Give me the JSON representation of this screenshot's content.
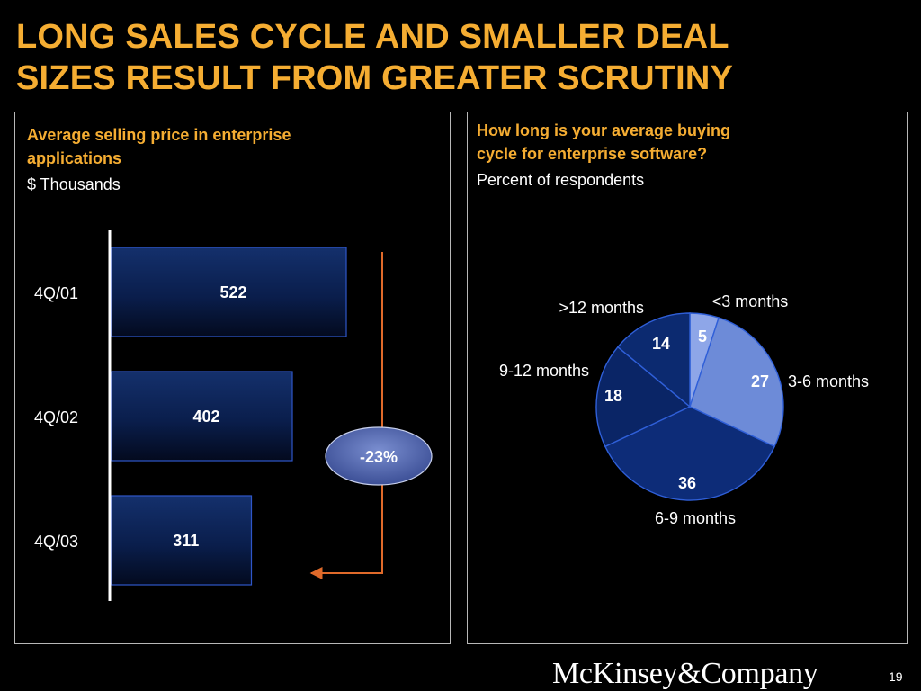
{
  "title_lines": [
    "LONG SALES CYCLE AND SMALLER DEAL",
    "SIZES RESULT FROM GREATER SCRUTINY"
  ],
  "colors": {
    "accent": "#f5ad32",
    "arrow": "#e06a2a",
    "background": "#000000"
  },
  "left_panel": {
    "title_lines": [
      "Average selling price in enterprise",
      "applications"
    ],
    "subtitle": "$ Thousands"
  },
  "right_panel": {
    "title_lines": [
      "How long is your average buying",
      "cycle for enterprise software?"
    ],
    "subtitle": "Percent of respondents"
  },
  "chart_data": [
    {
      "type": "bar",
      "orientation": "horizontal",
      "title": "Average selling price in enterprise applications",
      "unit": "$ Thousands",
      "categories": [
        "4Q/01",
        "4Q/02",
        "4Q/03"
      ],
      "values": [
        522,
        402,
        311
      ],
      "annotation": "-23%"
    },
    {
      "type": "pie",
      "title": "How long is your average buying cycle for enterprise software?",
      "unit": "Percent of respondents",
      "slices": [
        {
          "label": "<3 months",
          "value": 5,
          "color": "#8ea6e8"
        },
        {
          "label": "3-6 months",
          "value": 27,
          "color": "#6d8bd8"
        },
        {
          "label": "6-9 months",
          "value": 36,
          "color": "#0d2c78"
        },
        {
          "label": "9-12 months",
          "value": 18,
          "color": "#0a2566"
        },
        {
          "label": ">12 months",
          "value": 14,
          "color": "#0c2a70"
        }
      ]
    }
  ],
  "footer": {
    "logo": "McKinsey&Company",
    "page": "19"
  }
}
